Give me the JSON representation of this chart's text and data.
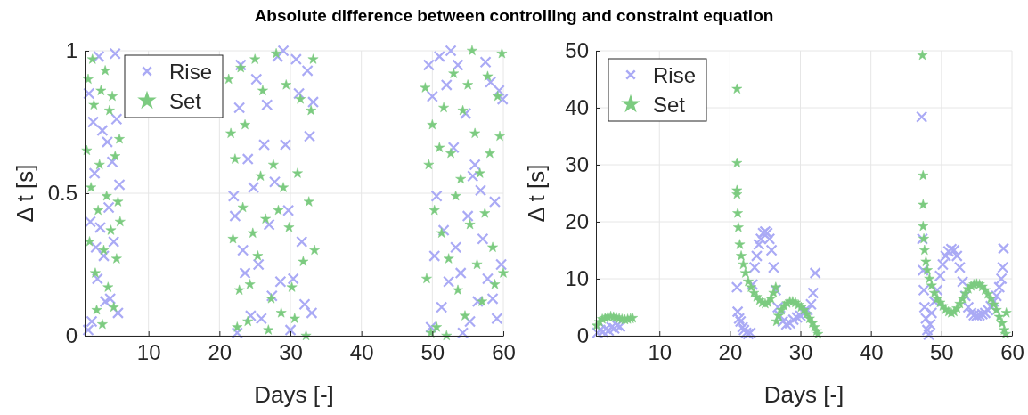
{
  "chart_data": [
    {
      "type": "scatter",
      "title": "Absolute difference between controlling and constraint equation",
      "xlabel": "Days [-]",
      "ylabel": "Δ t [s]",
      "xlim": [
        1,
        60
      ],
      "ylim": [
        0,
        1
      ],
      "xticks": [
        10,
        20,
        30,
        40,
        50,
        60
      ],
      "yticks": [
        0,
        0.5,
        1
      ],
      "grid": true,
      "legend": "top left",
      "series": [
        {
          "name": "Rise",
          "color": "#aaaaf5",
          "marker": "cross",
          "x": [
            1.5,
            1.6,
            1.8,
            2,
            2.2,
            2.4,
            2.6,
            2.8,
            3,
            3.2,
            3.5,
            3.7,
            3.9,
            4.2,
            4.4,
            4.6,
            4.9,
            5.1,
            5.3,
            5.5,
            5.7,
            5.9,
            22,
            22.2,
            22.5,
            22.8,
            23,
            23.3,
            23.6,
            24,
            24.4,
            24.8,
            25.2,
            25.5,
            25.9,
            26.3,
            26.7,
            27,
            27.4,
            27.8,
            28.2,
            28.6,
            29,
            29.3,
            29.7,
            30,
            30.4,
            30.8,
            31.2,
            31.6,
            32,
            32.4,
            32.7,
            33,
            33.2,
            49.5,
            49.8,
            50,
            50.3,
            50.6,
            51,
            51.3,
            51.6,
            52,
            52.3,
            52.6,
            53,
            53.3,
            53.6,
            54,
            54.3,
            54.7,
            55,
            55.3,
            55.7,
            56,
            56.4,
            56.8,
            57.1,
            57.5,
            57.8,
            58.2,
            58.5,
            58.8,
            59.1,
            59.4,
            59.7,
            59.9
          ],
          "values": [
            0.02,
            0.85,
            0.4,
            0.05,
            0.75,
            0.57,
            0.31,
            0.2,
            0.98,
            0.38,
            0.72,
            0.28,
            0.12,
            0.68,
            0.45,
            0.13,
            0.61,
            0.33,
            0.99,
            0.76,
            0.08,
            0.53,
            0.49,
            0.42,
            0.01,
            0.8,
            0.95,
            0.3,
            0.22,
            0.62,
            0.07,
            0.52,
            0.9,
            0.25,
            0.06,
            0.67,
            0.81,
            0.39,
            0.14,
            0.54,
            0.98,
            0.19,
            1.0,
            0.67,
            0.44,
            0.02,
            0.2,
            0.97,
            0.85,
            0.33,
            0.11,
            0.93,
            0.7,
            0.08,
            0.82,
            0.95,
            0.03,
            0.84,
            0.28,
            0.49,
            0.98,
            0.1,
            0.37,
            0.88,
            0.19,
            1.0,
            0.66,
            0.31,
            0.95,
            0.22,
            0.01,
            0.78,
            0.42,
            0.05,
            0.56,
            0.6,
            0.12,
            0.51,
            0.34,
            0.96,
            0.2,
            0.89,
            0.13,
            0.47,
            0.06,
            0.86,
            0.25,
            0.83
          ]
        },
        {
          "name": "Set",
          "color": "#7ccb80",
          "marker": "star",
          "x": [
            1.3,
            1.5,
            1.7,
            1.9,
            2.1,
            2.3,
            2.5,
            2.7,
            2.9,
            3.1,
            3.3,
            3.5,
            3.7,
            3.9,
            4.1,
            4.3,
            4.5,
            4.7,
            4.9,
            5.1,
            5.3,
            5.5,
            5.7,
            5.9,
            6,
            21.3,
            21.6,
            21.9,
            22.2,
            22.5,
            22.8,
            23,
            23.3,
            23.6,
            24,
            24.3,
            24.7,
            25,
            25.4,
            25.8,
            26.1,
            26.5,
            26.9,
            27.3,
            27.6,
            28,
            28.3,
            28.7,
            29,
            29.4,
            29.8,
            30.2,
            30.6,
            31,
            31.4,
            31.8,
            32.2,
            32.6,
            32.9,
            33.2,
            33.4,
            49,
            49.2,
            49.5,
            49.8,
            50,
            50.3,
            50.6,
            51,
            51.3,
            51.6,
            52,
            52.3,
            52.6,
            53,
            53.3,
            53.6,
            54,
            54.3,
            54.6,
            55,
            55.3,
            55.6,
            56,
            56.3,
            56.7,
            57,
            57.4,
            57.8,
            58.1,
            58.5,
            58.8,
            59.2,
            59.5,
            59.8,
            60
          ],
          "values": [
            0.65,
            0.9,
            0.33,
            0.52,
            0.97,
            0.81,
            0.22,
            0.09,
            0.44,
            0.6,
            0.86,
            0.04,
            0.3,
            0.93,
            0.49,
            0.17,
            0.79,
            0.37,
            0.84,
            0.1,
            0.63,
            0.27,
            0.47,
            0.69,
            0.4,
            0.9,
            0.71,
            0.34,
            0.62,
            0.03,
            0.16,
            0.94,
            0.45,
            0.74,
            0.05,
            0.18,
            0.36,
            0.97,
            0.28,
            0.56,
            0.86,
            0.41,
            0.02,
            0.13,
            0.6,
            0.99,
            0.44,
            0.08,
            0.52,
            0.88,
            0.38,
            0.17,
            0.06,
            0.57,
            0.83,
            0.26,
            0.0,
            0.47,
            0.79,
            0.97,
            0.3,
            0.87,
            0.2,
            0.6,
            0.01,
            0.74,
            0.44,
            0.03,
            0.66,
            0.36,
            0.8,
            0.0,
            0.27,
            0.64,
            0.92,
            0.49,
            0.16,
            0.55,
            0.79,
            0.07,
            0.88,
            0.39,
            1.0,
            0.71,
            0.25,
            0.57,
            0.12,
            0.43,
            0.91,
            0.64,
            0.31,
            0.18,
            0.84,
            0.7,
            0.99,
            0.22
          ]
        }
      ]
    },
    {
      "type": "scatter",
      "xlabel": "Days [-]",
      "ylabel": "Δ t [s]",
      "xlim": [
        1,
        60
      ],
      "ylim": [
        0,
        50
      ],
      "xticks": [
        10,
        20,
        30,
        40,
        50,
        60
      ],
      "yticks": [
        0,
        10,
        20,
        30,
        40,
        50
      ],
      "grid": true,
      "legend": "top left",
      "series": [
        {
          "name": "Rise",
          "color": "#aaaaf5",
          "marker": "cross",
          "x": [
            1.2,
            1.6,
            2,
            2.4,
            2.8,
            3.2,
            3.6,
            4,
            4.4,
            21,
            21.1,
            21.3,
            21.5,
            21.8,
            22,
            22.3,
            22.6,
            22.9,
            23.2,
            23.5,
            23.8,
            24.1,
            24.4,
            24.7,
            25,
            25.3,
            25.6,
            25.9,
            26.2,
            26.5,
            26.8,
            27.1,
            27.5,
            28,
            28.5,
            29,
            29.5,
            30,
            30.5,
            31,
            31.5,
            31.8,
            32.1,
            47.2,
            47.3,
            47.4,
            47.5,
            47.6,
            47.8,
            48,
            48.2,
            48.4,
            48.6,
            49,
            49.4,
            49.8,
            50.2,
            50.6,
            51,
            51.4,
            51.8,
            52.2,
            52.6,
            53,
            53.4,
            53.8,
            54.2,
            54.6,
            55,
            55.4,
            55.8,
            56.2,
            56.6,
            57,
            57.4,
            57.8,
            58.2,
            58.5,
            58.7,
            58.8
          ],
          "values": [
            0.5,
            1.0,
            0.7,
            1.2,
            0.9,
            1.5,
            1.3,
            1.8,
            1.6,
            8.5,
            4.2,
            3,
            2.5,
            1.5,
            1,
            0.5,
            0.3,
            0.5,
            9,
            12,
            14,
            16,
            17,
            18,
            18.3,
            18,
            17,
            15,
            12,
            8,
            5,
            3.5,
            2.5,
            2,
            2.2,
            2.8,
            3.2,
            3.5,
            4,
            4.5,
            5.5,
            7.5,
            11,
            38.4,
            17,
            11.5,
            8,
            5,
            3,
            1,
            0.2,
            2,
            4,
            6,
            8,
            10.5,
            12.5,
            14,
            14.8,
            15.2,
            15,
            14,
            12,
            9.5,
            7,
            5,
            4,
            3.6,
            3.5,
            3.6,
            3.8,
            4,
            4.5,
            5.2,
            6,
            7,
            8.5,
            10,
            12,
            15.3
          ]
        },
        {
          "name": "Set",
          "color": "#7ccb80",
          "marker": "star",
          "x": [
            1.1,
            1.5,
            1.9,
            2.3,
            2.7,
            3.1,
            3.5,
            3.9,
            4.3,
            4.7,
            5.1,
            5.5,
            5.9,
            6.2,
            21,
            21,
            21,
            21,
            21.1,
            21.2,
            21.4,
            21.6,
            21.9,
            22.2,
            22.6,
            23,
            23.4,
            23.8,
            24.2,
            24.6,
            25,
            25.4,
            25.8,
            26.2,
            26.5,
            26.6,
            26.9,
            27.3,
            27.7,
            28.1,
            28.5,
            28.9,
            29.3,
            29.7,
            30.1,
            30.5,
            30.9,
            31.3,
            31.7,
            32,
            32.3,
            32.5,
            47.3,
            47.4,
            47.4,
            47.4,
            47.5,
            47.6,
            47.8,
            48,
            48.3,
            48.6,
            49,
            49.4,
            49.8,
            50.2,
            50.6,
            51,
            51.4,
            51.8,
            52.2,
            52.6,
            53,
            53.4,
            53.8,
            54.2,
            54.6,
            55,
            55.4,
            55.8,
            56.2,
            56.6,
            57,
            57.4,
            57.8,
            58.2,
            58.6,
            58.9,
            59.1,
            59.2
          ],
          "values": [
            1.8,
            2.4,
            2.9,
            3.1,
            3.3,
            3.4,
            3.3,
            3.2,
            3.0,
            2.9,
            2.8,
            2.9,
            3.0,
            3.1,
            43.3,
            30.3,
            25.5,
            24.8,
            21.5,
            19,
            16,
            14,
            12.5,
            11,
            9.5,
            8.5,
            7.5,
            6.8,
            6.2,
            5.8,
            5.6,
            5.8,
            6.5,
            7.5,
            8.5,
            2.5,
            3.5,
            4.5,
            5.2,
            5.7,
            6,
            6,
            5.8,
            5.4,
            5,
            4.5,
            3.8,
            3,
            2.2,
            1.5,
            0.8,
            0.3,
            49.2,
            28.1,
            23,
            19.2,
            17,
            15,
            13,
            11.5,
            10,
            8.8,
            7.5,
            6.5,
            5.8,
            5.2,
            4.6,
            4.2,
            4,
            4.2,
            4.8,
            5.6,
            6.5,
            7.4,
            8.2,
            8.7,
            9,
            9.1,
            9,
            8.6,
            8,
            7.3,
            6.5,
            5.5,
            4.5,
            3.3,
            2.2,
            1,
            0.3,
            4
          ]
        }
      ]
    }
  ]
}
